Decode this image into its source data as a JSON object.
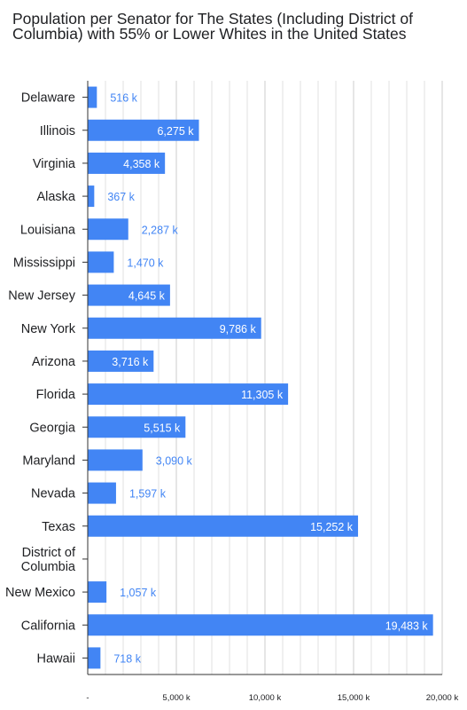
{
  "chart_data": {
    "type": "bar",
    "orientation": "horizontal",
    "title": "Population per Senator for The States (Including District of Columbia) with 55% or Lower Whites in the United States",
    "categories": [
      "Delaware",
      "Illinois",
      "Virginia",
      "Alaska",
      "Louisiana",
      "Mississippi",
      "New Jersey",
      "New York",
      "Arizona",
      "Florida",
      "Georgia",
      "Maryland",
      "Nevada",
      "Texas",
      "District of Columbia",
      "New Mexico",
      "California",
      "Hawaii"
    ],
    "values": [
      516,
      6275,
      4358,
      367,
      2287,
      1470,
      4645,
      9786,
      3716,
      11305,
      5515,
      3090,
      1597,
      15252,
      0,
      1057,
      19483,
      718
    ],
    "value_labels": [
      "516 k",
      "6,275 k",
      "4,358 k",
      "367 k",
      "2,287 k",
      "1,470 k",
      "4,645 k",
      "9,786 k",
      "3,716 k",
      "11,305 k",
      "5,515 k",
      "3,090 k",
      "1,597 k",
      "15,252 k",
      "",
      "1,057 k",
      "19,483 k",
      "718 k"
    ],
    "xlim": [
      0,
      20000
    ],
    "x_ticks": [
      0,
      5000,
      10000,
      15000,
      20000
    ],
    "x_tick_labels": [
      "-",
      "5,000 k",
      "10,000 k",
      "15,000 k",
      "20,000 k"
    ],
    "xlabel": "",
    "ylabel": "",
    "grid": true,
    "legend": "none",
    "colors": {
      "bar": "#4285f4",
      "label_inside": "#ffffff",
      "label_outside": "#4285f4",
      "grid": "#e0e0e0",
      "axis": "#333333",
      "text": "#202124"
    }
  }
}
